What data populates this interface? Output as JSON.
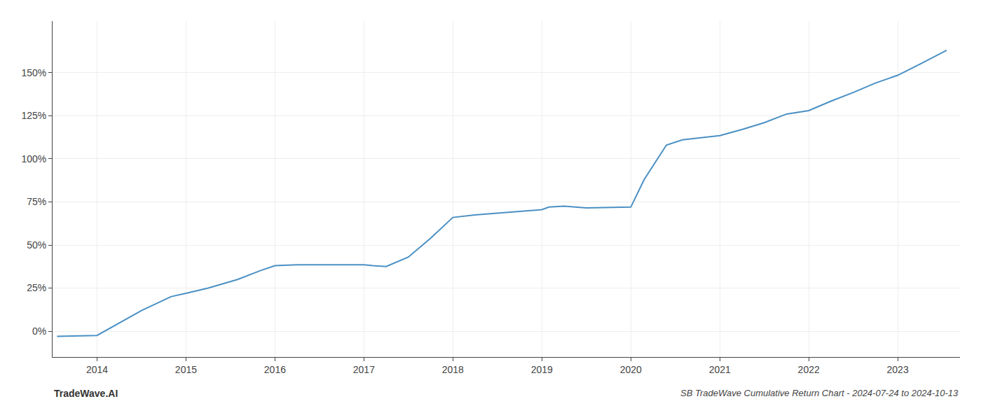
{
  "chart_data": {
    "type": "line",
    "title": "SB TradeWave Cumulative Return Chart - 2024-07-24 to 2024-10-13",
    "annotations": [
      "TradeWave.AI"
    ],
    "x": [
      2013.55,
      2014.0,
      2014.5,
      2014.83,
      2015.0,
      2015.25,
      2015.58,
      2015.83,
      2016.0,
      2016.25,
      2016.5,
      2016.75,
      2017.0,
      2017.1,
      2017.25,
      2017.5,
      2017.75,
      2018.0,
      2018.25,
      2018.5,
      2018.75,
      2019.0,
      2019.08,
      2019.25,
      2019.5,
      2019.75,
      2020.0,
      2020.15,
      2020.4,
      2020.58,
      2020.75,
      2021.0,
      2021.25,
      2021.5,
      2021.75,
      2022.0,
      2022.25,
      2022.5,
      2022.75,
      2023.0,
      2023.25,
      2023.55
    ],
    "values": [
      -3.0,
      -2.5,
      12.0,
      20.0,
      22.0,
      25.0,
      30.0,
      35.0,
      38.0,
      38.5,
      38.5,
      38.5,
      38.5,
      38.0,
      37.5,
      43.0,
      54.0,
      66.0,
      67.5,
      68.5,
      69.5,
      70.5,
      72.0,
      72.5,
      71.5,
      71.8,
      72.0,
      88.0,
      108.0,
      111.0,
      112.0,
      113.5,
      117.0,
      121.0,
      126.0,
      128.0,
      133.5,
      138.5,
      144.0,
      148.5,
      155.0,
      163.0
    ],
    "color": "#4a90c4",
    "xlim": [
      2013.5,
      2023.7
    ],
    "xticks": [
      2014,
      2015,
      2016,
      2017,
      2018,
      2019,
      2020,
      2021,
      2022,
      2023
    ],
    "ylim": [
      -15,
      180
    ],
    "yticks": [
      {
        "value": 0,
        "label": "0%"
      },
      {
        "value": 25,
        "label": "25%"
      },
      {
        "value": 50,
        "label": "50%"
      },
      {
        "value": 75,
        "label": "75%"
      },
      {
        "value": 100,
        "label": "100%"
      },
      {
        "value": 125,
        "label": "125%"
      },
      {
        "value": 150,
        "label": "150%"
      }
    ],
    "grid": true
  }
}
